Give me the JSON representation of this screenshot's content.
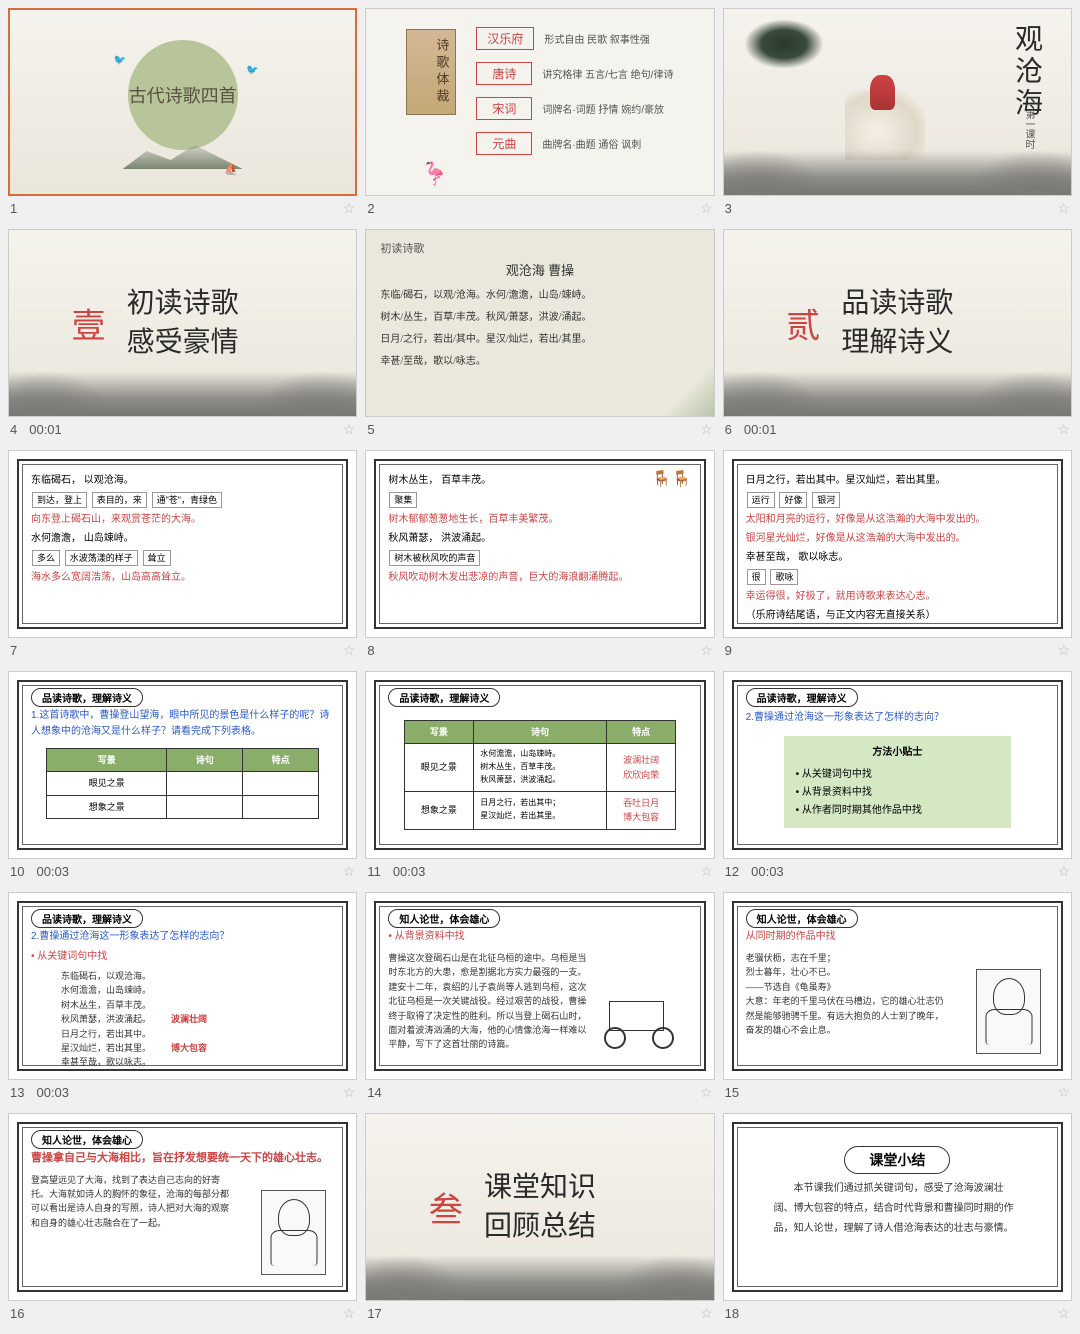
{
  "bg_color": "#f0f0f0",
  "slides": [
    {
      "num": "1",
      "time": "",
      "selected": true,
      "kind": "s1",
      "title": "古代诗歌四首"
    },
    {
      "num": "2",
      "time": "",
      "kind": "s2",
      "left_title": "诗歌体裁",
      "rows": [
        {
          "tag": "汉乐府",
          "desc": "形式自由  民歌  叙事性强"
        },
        {
          "tag": "唐诗",
          "desc": "讲究格律 五言/七言  绝句/律诗"
        },
        {
          "tag": "宋词",
          "desc": "词牌名·词题  抒情 婉约/豪放"
        },
        {
          "tag": "元曲",
          "desc": "曲牌名·曲题  通俗  讽刺"
        }
      ]
    },
    {
      "num": "3",
      "time": "",
      "kind": "s3",
      "title": "观沧海",
      "sub": "第一课时"
    },
    {
      "num": "4",
      "time": "00:01",
      "kind": "bigtitle",
      "badge": "壹",
      "title": "初读诗歌\n感受豪情"
    },
    {
      "num": "5",
      "time": "",
      "kind": "s5",
      "hdr": "初读诗歌",
      "poem_title": "观沧海   曹操",
      "lines": [
        "东临/碣石，以观/沧海。水何/澹澹，山岛/竦峙。",
        "树木/丛生，百草/丰茂。秋风/萧瑟，洪波/涌起。",
        "日月/之行，若出/其中。星汉/灿烂，若出/其里。",
        "幸甚/至哉，歌以/咏志。"
      ]
    },
    {
      "num": "6",
      "time": "00:01",
      "kind": "bigtitle",
      "badge": "贰",
      "title": "品读诗歌\n理解诗义"
    },
    {
      "num": "7",
      "time": "",
      "kind": "annot",
      "lines": [
        {
          "t": "东临碣石，    以观沧海。",
          "cls": ""
        },
        {
          "t": "到达，登上    表目的，来    通\"苍\"，青绿色",
          "cls": "kw"
        },
        {
          "t": "向东登上碣石山，来观赏苍茫的大海。",
          "cls": "pf-red"
        },
        {
          "t": "水何澹澹，    山岛竦峙。",
          "cls": ""
        },
        {
          "t": "多么  水波荡漾的样子    耸立",
          "cls": "kw"
        },
        {
          "t": "海水多么宽阔浩荡，山岛高高耸立。",
          "cls": "pf-red"
        }
      ]
    },
    {
      "num": "8",
      "time": "",
      "kind": "annot",
      "deco": "chairs",
      "lines": [
        {
          "t": "树木丛生，    百草丰茂。",
          "cls": ""
        },
        {
          "t": "聚集",
          "cls": "kw"
        },
        {
          "t": "树木郁郁葱葱地生长，百草丰美繁茂。",
          "cls": "pf-red"
        },
        {
          "t": "秋风萧瑟，    洪波涌起。",
          "cls": ""
        },
        {
          "t": "树木被秋风吹的声音",
          "cls": "kw"
        },
        {
          "t": "秋风吹动树木发出悲凉的声音，巨大的海浪翻涌腾起。",
          "cls": "pf-red"
        }
      ]
    },
    {
      "num": "9",
      "time": "",
      "kind": "annot",
      "lines": [
        {
          "t": "日月之行，若出其中。星汉灿烂，若出其里。",
          "cls": ""
        },
        {
          "t": "运行   好像        银河",
          "cls": "kw"
        },
        {
          "t": "太阳和月亮的运行，好像是从这浩瀚的大海中发出的。",
          "cls": "pf-red"
        },
        {
          "t": "银河星光灿烂，好像是从这浩瀚的大海中发出的。",
          "cls": "pf-red"
        },
        {
          "t": "幸甚至哉，    歌以咏志。",
          "cls": ""
        },
        {
          "t": "很            歌咏",
          "cls": "kw"
        },
        {
          "t": "幸运得很，好极了，就用诗歌来表达心志。",
          "cls": "pf-red"
        },
        {
          "t": "（乐府诗结尾语，与正文内容无直接关系）",
          "cls": ""
        }
      ]
    },
    {
      "num": "10",
      "time": "00:03",
      "kind": "table_q",
      "label": "品读诗歌，理解诗义",
      "q": "1.这首诗歌中，曹操登山望海，眼中所见的景色是什么样子的呢？诗人想象中的沧海又是什么样子？请看完成下列表格。",
      "headers": [
        "写景",
        "诗句",
        "特点"
      ],
      "rows": [
        [
          "眼见之景",
          "",
          ""
        ],
        [
          "想象之景",
          "",
          ""
        ]
      ]
    },
    {
      "num": "11",
      "time": "00:03",
      "kind": "table_a",
      "label": "品读诗歌，理解诗义",
      "headers": [
        "写景",
        "诗句",
        "特点"
      ],
      "rows": [
        [
          "眼见之景",
          "水何澹澹，山岛竦峙。\n树木丛生，百草丰茂。\n秋风萧瑟，洪波涌起。",
          "波澜壮阔\n欣欣向荣"
        ],
        [
          "想象之景",
          "日月之行，若出其中；\n星汉灿烂，若出其里。",
          "吞吐日月\n博大包容"
        ]
      ]
    },
    {
      "num": "12",
      "time": "00:03",
      "kind": "tips",
      "label": "品读诗歌，理解诗义",
      "q": "2.曹操通过沧海这一形象表达了怎样的志向？",
      "tips_title": "方法小贴士",
      "tips": [
        "• 从关键词句中找",
        "• 从背景资料中找",
        "• 从作者同时期其他作品中找"
      ]
    },
    {
      "num": "13",
      "time": "00:03",
      "kind": "analysis",
      "label": "品读诗歌，理解诗义",
      "q": "2.曹操通过沧海这一形象表达了怎样的志向？",
      "sub": "• 从关键词句中找",
      "body": [
        "东临碣石，以观沧海。",
        "水何澹澹，山岛竦峙。",
        "树木丛生，百草丰茂。",
        "秋风萧瑟，洪波涌起。    波澜壮阔",
        "日月之行，若出其中。",
        "星汉灿烂，若出其里。    博大包容",
        "幸甚至哉，歌以咏志。"
      ]
    },
    {
      "num": "14",
      "time": "",
      "kind": "bg_info",
      "label": "知人论世，体会雄心",
      "sub": "• 从背景资料中找",
      "body": "曹操这次登碣石山是在北征乌桓的途中。乌桓是当时东北方的大患，愈是割据北方实力最强的一支。建安十二年，袁绍的儿子袁尚等人逃到乌桓，这次北征乌桓是一次关键战役。经过艰苦的战役，曹操终于取得了决定性的胜利。所以当登上碣石山时，面对着波涛汹涌的大海，他的心情像沧海一样难以平静，写下了这首壮丽的诗篇。",
      "img": "chariot"
    },
    {
      "num": "15",
      "time": "",
      "kind": "bg_info",
      "label": "知人论世，体会雄心",
      "sub": "从同时期的作品中找",
      "body": "老骥伏枥，志在千里；\n烈士暮年，壮心不已。\n        ——节选自《龟虽寿》\n大意：年老的千里马伏在马槽边，它的雄心壮志仍然是能够驰骋千里。有远大抱负的人士到了晚年，奋发的雄心不会止息。",
      "img": "portrait"
    },
    {
      "num": "16",
      "time": "",
      "kind": "bg_info",
      "label": "知人论世，体会雄心",
      "heading": "曹操拿自己与大海相比，旨在抒发想要统一天下的雄心壮志。",
      "body": "登高望远见了大海，找到了表达自己志向的好寄托。大海就如诗人的胸怀的象征，沧海的每部分都可以看出是诗人自身的写照，诗人把对大海的观察和自身的雄心壮志融合在了一起。",
      "img": "portrait"
    },
    {
      "num": "17",
      "time": "",
      "kind": "bigtitle",
      "badge": "叁",
      "title": "课堂知识\n回顾总结"
    },
    {
      "num": "18",
      "time": "",
      "kind": "summary",
      "pill": "课堂小结",
      "para": "本节课我们通过抓关键词句，感受了沧海波澜壮阔、博大包容的特点，结合时代背景和曹操同时期的作品，知人论世，理解了诗人借沧海表达的壮志与豪情。"
    }
  ]
}
